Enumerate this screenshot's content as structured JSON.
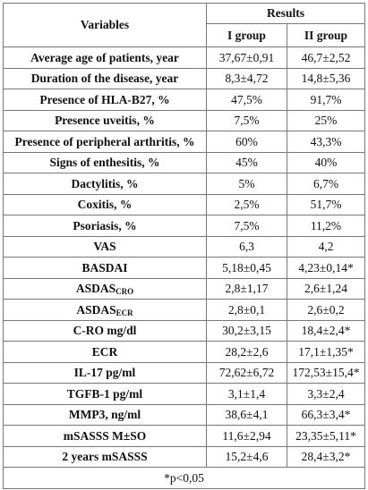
{
  "table": {
    "header_variables": "Variables",
    "header_results": "Results",
    "header_group1": "I group",
    "header_group2": "II group",
    "rows": [
      {
        "label": "Average age of patients, year",
        "sub": "",
        "g1": "37,67±0,91",
        "g2": "46,7±2,52"
      },
      {
        "label": "Duration of the disease, year",
        "sub": "",
        "g1": "8,3±4,72",
        "g2": "14,8±5,36"
      },
      {
        "label": "Presence of HLA-B27, %",
        "sub": "",
        "g1": "47,5%",
        "g2": "91,7%"
      },
      {
        "label": "Presence uveitis, %",
        "sub": "",
        "g1": "7,5%",
        "g2": "25%"
      },
      {
        "label": "Presence of peripheral arthritis,  %",
        "sub": "",
        "g1": "60%",
        "g2": "43,3%"
      },
      {
        "label": "Signs of enthesitis, %",
        "sub": "",
        "g1": "45%",
        "g2": "40%"
      },
      {
        "label": "Dactylitis, %",
        "sub": "",
        "g1": "5%",
        "g2": "6,7%"
      },
      {
        "label": "Coxitis, %",
        "sub": "",
        "g1": "2,5%",
        "g2": "51,7%"
      },
      {
        "label": "Psoriasis, %",
        "sub": "",
        "g1": "7,5%",
        "g2": "11,2%"
      },
      {
        "label": "VAS",
        "sub": "",
        "g1": "6,3",
        "g2": "4,2"
      },
      {
        "label": "BASDAI",
        "sub": "",
        "g1": "5,18±0,45",
        "g2": "4,23±0,14*"
      },
      {
        "label": "ASDAS",
        "sub": "CRO",
        "g1": "2,8±1,17",
        "g2": "2,6±1,24"
      },
      {
        "label": "ASDAS",
        "sub": "ECR",
        "g1": "2,8±0,1",
        "g2": "2,6±0,2"
      },
      {
        "label": "C-RO mg/dl",
        "sub": "",
        "g1": "30,2±3,15",
        "g2": "18,4±2,4*"
      },
      {
        "label": "ECR",
        "sub": "",
        "g1": "28,2±2,6",
        "g2": "17,1±1,35*"
      },
      {
        "label": "IL-17 pg/ml",
        "sub": "",
        "g1": "72,62±6,72",
        "g2": "172,53±15,4*"
      },
      {
        "label": "TGFB-1 pg/ml",
        "sub": "",
        "g1": "3,1±1,4",
        "g2": "3,3±2,4"
      },
      {
        "label": "MMP3, ng/ml",
        "sub": "",
        "g1": "38,6±4,1",
        "g2": "66,3±3,4*"
      },
      {
        "label": "mSASSS M±SO",
        "sub": "",
        "g1": "11,6±2,94",
        "g2": "23,35±5,11*"
      },
      {
        "label": "2 years mSASSS",
        "sub": "",
        "g1": "15,2±4,6",
        "g2": "28,4±3,2*"
      }
    ],
    "footnote": "*p<0,05"
  }
}
